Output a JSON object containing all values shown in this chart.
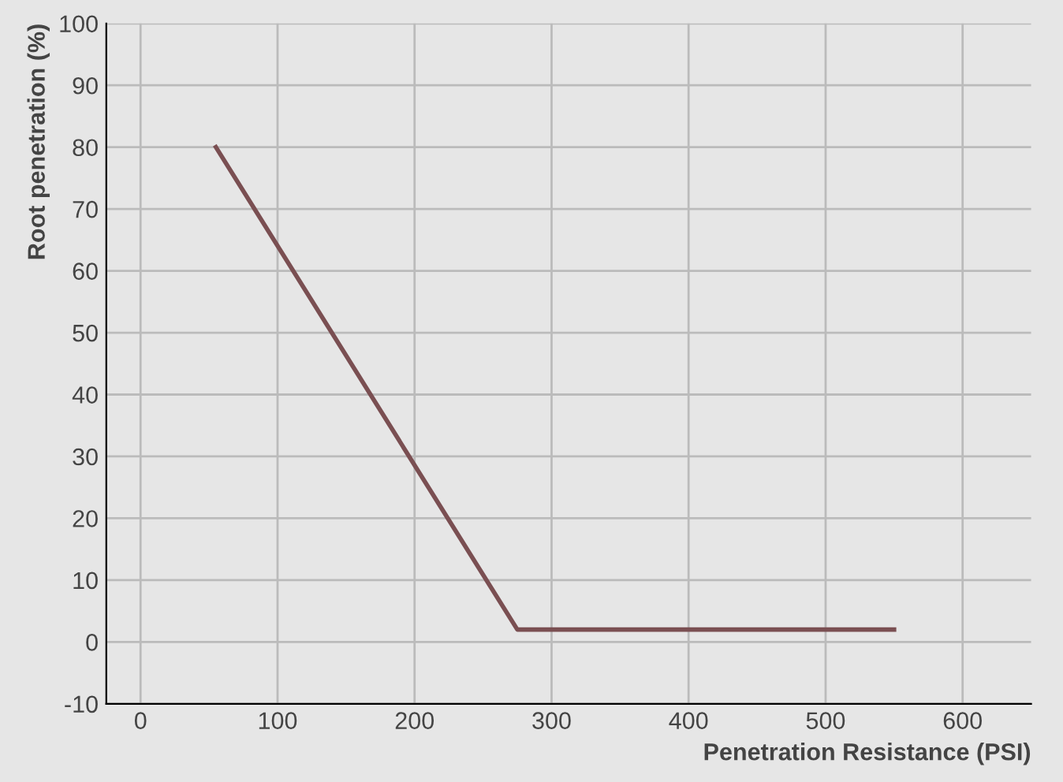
{
  "chart_data": {
    "type": "line",
    "xlabel": "Penetration Resistance (PSI)",
    "ylabel": "Root penetration (%)",
    "x": [
      55,
      275,
      550
    ],
    "series": [
      {
        "color": "#7a4f52",
        "values": [
          80,
          2,
          2
        ]
      }
    ],
    "xlim": [
      -25,
      650
    ],
    "xticks": [
      0,
      100,
      200,
      300,
      400,
      500,
      600
    ],
    "ylim": [
      -10,
      100
    ],
    "yticks": [
      -10,
      0,
      10,
      20,
      30,
      40,
      50,
      60,
      70,
      80,
      90,
      100
    ],
    "grid": true,
    "marker": "none",
    "line_style": "solid"
  }
}
